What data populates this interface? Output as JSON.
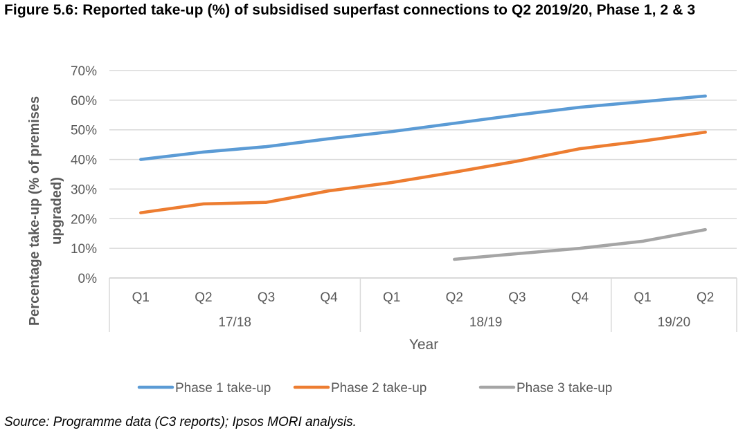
{
  "figure": {
    "title": "Figure 5.6: Reported take-up (%) of subsidised superfast connections to Q2 2019/20, Phase 1, 2 & 3",
    "source": "Source: Programme data (C3 reports); Ipsos MORI analysis."
  },
  "chart_data": {
    "type": "line",
    "title": "Figure 5.6: Reported take-up (%) of subsidised superfast connections to Q2 2019/20, Phase 1, 2 & 3",
    "xlabel": "Year",
    "ylabel_line1": "Percentage take-up (% of premises",
    "ylabel_line2": "upgraded)",
    "ylim": [
      0,
      70
    ],
    "yticks": [
      0,
      10,
      20,
      30,
      40,
      50,
      60,
      70
    ],
    "ytick_labels": [
      "0%",
      "10%",
      "20%",
      "30%",
      "40%",
      "50%",
      "60%",
      "70%"
    ],
    "grid": true,
    "legend_position": "bottom",
    "categories": [
      "Q1",
      "Q2",
      "Q3",
      "Q4",
      "Q1",
      "Q2",
      "Q3",
      "Q4",
      "Q1",
      "Q2"
    ],
    "category_groups": [
      {
        "label": "17/18",
        "count": 4
      },
      {
        "label": "18/19",
        "count": 4
      },
      {
        "label": "19/20",
        "count": 2
      }
    ],
    "series": [
      {
        "name": "Phase 1 take-up",
        "color": "#5B9BD5",
        "values": [
          40.0,
          42.5,
          44.3,
          47.0,
          49.4,
          52.2,
          55.0,
          57.6,
          59.5,
          61.4
        ]
      },
      {
        "name": "Phase 2 take-up",
        "color": "#ED7D31",
        "values": [
          22.0,
          25.0,
          25.5,
          29.4,
          32.2,
          35.7,
          39.4,
          43.6,
          46.2,
          49.2
        ]
      },
      {
        "name": "Phase 3 take-up",
        "color": "#A5A5A5",
        "values": [
          null,
          null,
          null,
          null,
          null,
          6.3,
          8.2,
          10.0,
          12.4,
          16.3
        ]
      }
    ]
  }
}
